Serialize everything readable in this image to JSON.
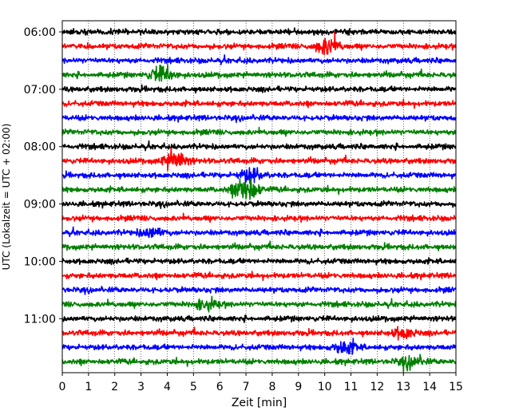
{
  "chart_data": {
    "type": "line",
    "title": "",
    "xlabel": "Zeit  [min]",
    "ylabel": "UTC (Lokalzeit = UTC + 02:00)",
    "xlim": [
      0,
      15
    ],
    "x_ticks": [
      0,
      1,
      2,
      3,
      4,
      5,
      6,
      7,
      8,
      9,
      10,
      11,
      12,
      13,
      14,
      15
    ],
    "x_tick_labels": [
      "0",
      "1",
      "2",
      "3",
      "4",
      "5",
      "6",
      "7",
      "8",
      "9",
      "10",
      "11",
      "12",
      "13",
      "14",
      "15"
    ],
    "y_tick_labels": [
      "06:00",
      "07:00",
      "08:00",
      "09:00",
      "10:00",
      "11:00"
    ],
    "grid": "vertical-dotted",
    "legend": "none",
    "trace_colors": [
      "#000000",
      "#ff0000",
      "#0000ff",
      "#008000"
    ],
    "traces": [
      {
        "start": "06:00",
        "color": "#000000",
        "events": []
      },
      {
        "start": "06:15",
        "color": "#ff0000",
        "events": [
          {
            "t": 10.1,
            "amp": 0.5
          }
        ]
      },
      {
        "start": "06:30",
        "color": "#0000ff",
        "events": []
      },
      {
        "start": "06:45",
        "color": "#008000",
        "events": [
          {
            "t": 3.8,
            "amp": 0.5
          }
        ]
      },
      {
        "start": "07:00",
        "color": "#000000",
        "events": []
      },
      {
        "start": "07:15",
        "color": "#ff0000",
        "events": []
      },
      {
        "start": "07:30",
        "color": "#0000ff",
        "events": []
      },
      {
        "start": "07:45",
        "color": "#008000",
        "events": []
      },
      {
        "start": "08:00",
        "color": "#000000",
        "events": []
      },
      {
        "start": "08:15",
        "color": "#ff0000",
        "events": [
          {
            "t": 4.3,
            "amp": 0.6
          }
        ]
      },
      {
        "start": "08:30",
        "color": "#0000ff",
        "events": [
          {
            "t": 7.2,
            "amp": 0.4
          }
        ]
      },
      {
        "start": "08:45",
        "color": "#008000",
        "events": [
          {
            "t": 7.0,
            "amp": 0.9
          }
        ]
      },
      {
        "start": "09:00",
        "color": "#000000",
        "events": []
      },
      {
        "start": "09:15",
        "color": "#ff0000",
        "events": []
      },
      {
        "start": "09:30",
        "color": "#0000ff",
        "events": [
          {
            "t": 3.4,
            "amp": 0.3
          }
        ]
      },
      {
        "start": "09:45",
        "color": "#008000",
        "events": []
      },
      {
        "start": "10:00",
        "color": "#000000",
        "events": []
      },
      {
        "start": "10:15",
        "color": "#ff0000",
        "events": []
      },
      {
        "start": "10:30",
        "color": "#0000ff",
        "events": []
      },
      {
        "start": "10:45",
        "color": "#008000",
        "events": [
          {
            "t": 5.5,
            "amp": 0.3
          }
        ]
      },
      {
        "start": "11:00",
        "color": "#000000",
        "events": []
      },
      {
        "start": "11:15",
        "color": "#ff0000",
        "events": [
          {
            "t": 13.0,
            "amp": 0.3
          }
        ]
      },
      {
        "start": "11:30",
        "color": "#0000ff",
        "events": [
          {
            "t": 10.8,
            "amp": 0.4
          }
        ]
      },
      {
        "start": "11:45",
        "color": "#008000",
        "events": [
          {
            "t": 13.3,
            "amp": 0.3
          }
        ]
      }
    ]
  }
}
